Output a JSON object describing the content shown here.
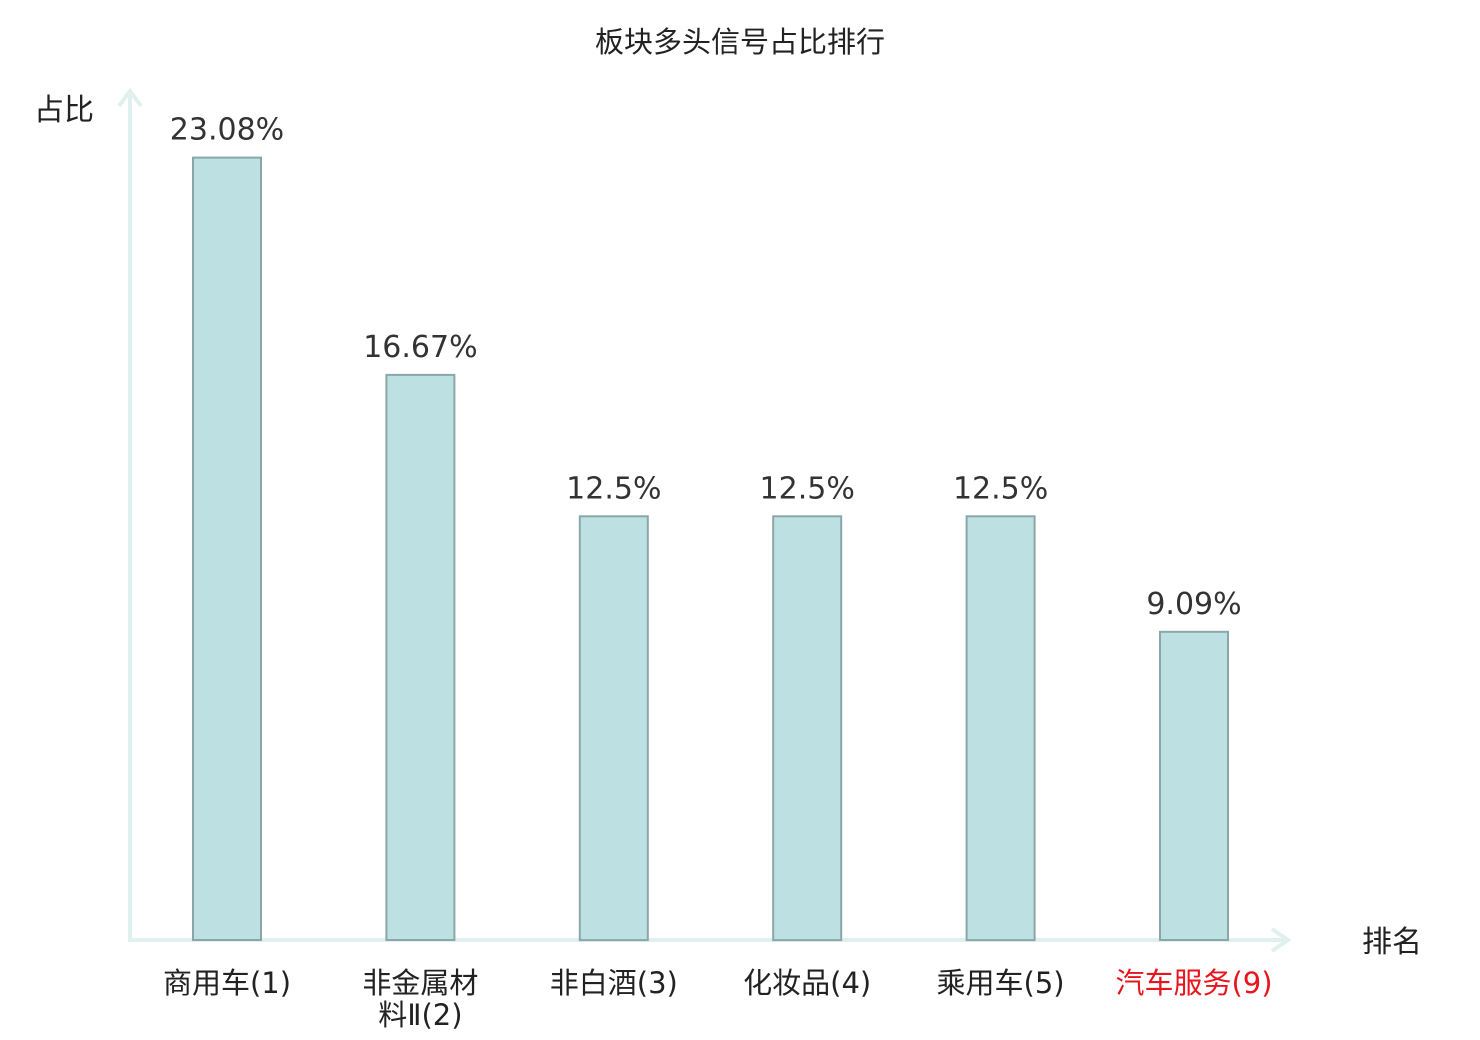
{
  "chart_data": {
    "type": "bar",
    "title": "板块多头信号占比排行",
    "ylabel": "占比",
    "xlabel": "排名",
    "ylim": [
      0,
      25
    ],
    "grid": false,
    "legend": "none",
    "categories": [
      {
        "name": "商用车",
        "rank": "(1)",
        "lines": [
          "商用车(1)"
        ],
        "highlight": false
      },
      {
        "name": "非金属材料Ⅱ",
        "rank": "(2)",
        "lines": [
          "非金属材",
          "料Ⅱ(2)"
        ],
        "highlight": false
      },
      {
        "name": "非白酒",
        "rank": "(3)",
        "lines": [
          "非白酒(3)"
        ],
        "highlight": false
      },
      {
        "name": "化妆品",
        "rank": "(4)",
        "lines": [
          "化妆品(4)"
        ],
        "highlight": false
      },
      {
        "name": "乘用车",
        "rank": "(5)",
        "lines": [
          "乘用车(5)"
        ],
        "highlight": false
      },
      {
        "name": "汽车服务",
        "rank": "(9)",
        "lines": [
          "汽车服务(9)"
        ],
        "highlight": true
      }
    ],
    "values": [
      23.08,
      16.67,
      12.5,
      12.5,
      12.5,
      9.09
    ],
    "value_labels": [
      "23.08%",
      "16.67%",
      "12.5%",
      "12.5%",
      "12.5%",
      "9.09%"
    ],
    "colors": {
      "bar_fill": "#bde0e2",
      "bar_stroke": "#8aa6a8",
      "axis": "#dff0ee",
      "highlight_text": "#e8141e"
    }
  }
}
